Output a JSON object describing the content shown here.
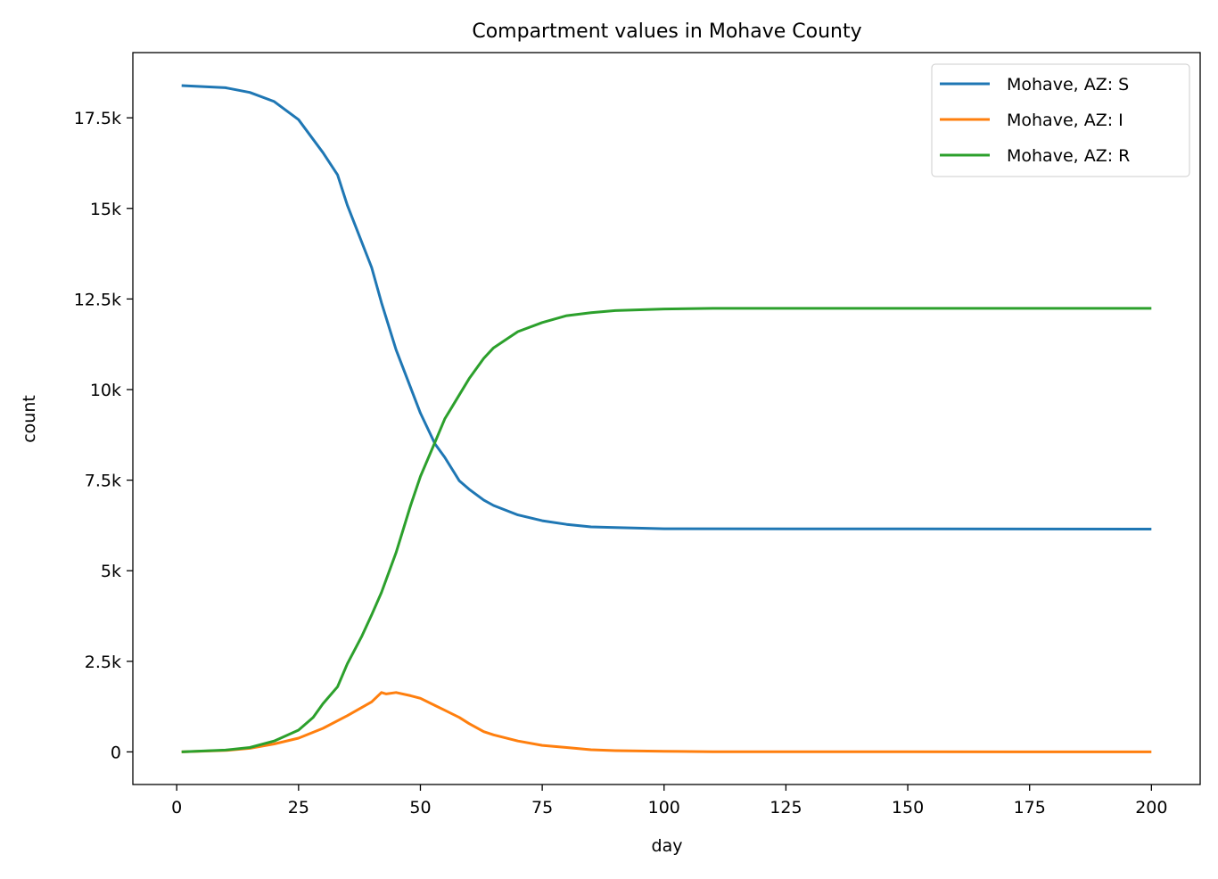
{
  "chart_data": {
    "type": "line",
    "title": "Compartment values in Mohave County",
    "xlabel": "day",
    "ylabel": "count",
    "xlim": [
      -9,
      210
    ],
    "ylim": [
      -900,
      19300
    ],
    "xticks": [
      0,
      25,
      50,
      75,
      100,
      125,
      150,
      175,
      200
    ],
    "xtick_labels": [
      "0",
      "25",
      "50",
      "75",
      "100",
      "125",
      "150",
      "175",
      "200"
    ],
    "yticks": [
      0,
      2500,
      5000,
      7500,
      10000,
      12500,
      15000,
      17500
    ],
    "ytick_labels": [
      "0",
      "2.5k",
      "5k",
      "7.5k",
      "10k",
      "12.5k",
      "15k",
      "17.5k"
    ],
    "grid": false,
    "legend_position": "top-right",
    "series": [
      {
        "name": "Mohave, AZ: S",
        "color": "#1f77b4",
        "x": [
          1,
          10,
          15,
          20,
          25,
          30,
          33,
          35,
          40,
          42,
          45,
          50,
          53,
          55,
          58,
          60,
          63,
          65,
          70,
          75,
          80,
          85,
          90,
          100,
          200
        ],
        "y": [
          18390,
          18330,
          18200,
          17950,
          17450,
          16540,
          15925,
          15090,
          13370,
          12400,
          11100,
          9350,
          8500,
          8130,
          7480,
          7250,
          6950,
          6800,
          6540,
          6380,
          6280,
          6210,
          6190,
          6160,
          6150
        ]
      },
      {
        "name": "Mohave, AZ: I",
        "color": "#ff7f0e",
        "x": [
          1,
          10,
          15,
          20,
          25,
          30,
          35,
          40,
          42,
          43,
          45,
          48,
          50,
          53,
          55,
          58,
          60,
          63,
          65,
          70,
          75,
          80,
          85,
          90,
          100,
          110,
          200
        ],
        "y": [
          0,
          40,
          100,
          220,
          380,
          650,
          1000,
          1380,
          1640,
          1600,
          1640,
          1550,
          1480,
          1280,
          1150,
          950,
          780,
          560,
          470,
          300,
          180,
          120,
          60,
          35,
          15,
          5,
          0
        ]
      },
      {
        "name": "Mohave, AZ: R",
        "color": "#2ca02c",
        "x": [
          1,
          10,
          15,
          20,
          25,
          28,
          30,
          33,
          35,
          38,
          40,
          42,
          45,
          48,
          50,
          53,
          55,
          60,
          63,
          65,
          70,
          75,
          80,
          85,
          90,
          100,
          110,
          200
        ],
        "y": [
          0,
          50,
          120,
          300,
          600,
          950,
          1330,
          1800,
          2430,
          3200,
          3780,
          4400,
          5500,
          6800,
          7600,
          8550,
          9190,
          10300,
          10860,
          11150,
          11600,
          11850,
          12040,
          12120,
          12180,
          12225,
          12240,
          12240
        ]
      }
    ]
  }
}
